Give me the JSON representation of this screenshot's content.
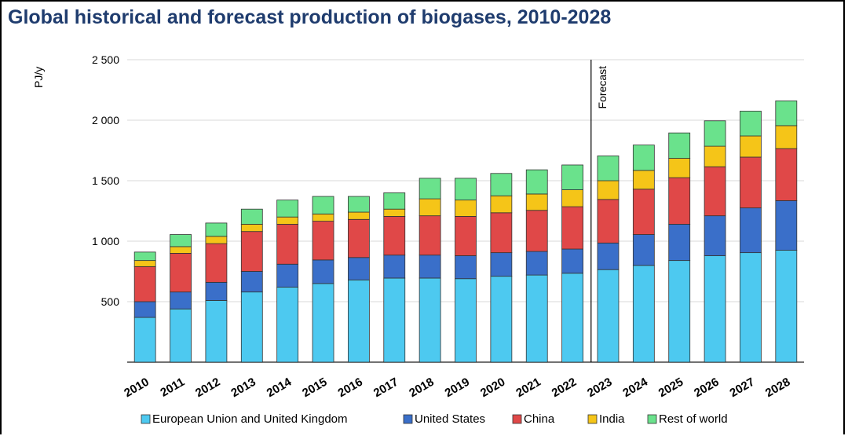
{
  "chart_data": {
    "type": "bar",
    "stacked": true,
    "title": "Global historical and forecast production of biogases, 2010-2028",
    "ylabel": "PJ/y",
    "xlabel": "",
    "ylim": [
      0,
      2500
    ],
    "yticks": [
      500,
      1000,
      1500,
      2000,
      2500
    ],
    "ytick_labels": [
      "500",
      "1 000",
      "1 500",
      "2 000",
      "2 500"
    ],
    "grid": true,
    "legend_position": "bottom",
    "forecast_label": "Forecast",
    "forecast_after": "2022",
    "categories": [
      "2010",
      "2011",
      "2012",
      "2013",
      "2014",
      "2015",
      "2016",
      "2017",
      "2018",
      "2019",
      "2020",
      "2021",
      "2022",
      "2023",
      "2024",
      "2025",
      "2026",
      "2027",
      "2028"
    ],
    "series": [
      {
        "name": "European Union and United Kingdom",
        "color": "#4dc9f0",
        "values": [
          370,
          440,
          510,
          580,
          620,
          650,
          680,
          695,
          695,
          690,
          710,
          720,
          735,
          765,
          800,
          840,
          880,
          905,
          925
        ]
      },
      {
        "name": "United States",
        "color": "#3a6fc9",
        "values": [
          130,
          140,
          150,
          170,
          190,
          195,
          185,
          190,
          190,
          190,
          195,
          195,
          200,
          220,
          255,
          300,
          330,
          370,
          410
        ]
      },
      {
        "name": "China",
        "color": "#e04848",
        "values": [
          290,
          320,
          320,
          330,
          330,
          320,
          315,
          320,
          325,
          325,
          330,
          340,
          350,
          360,
          375,
          385,
          405,
          420,
          430
        ]
      },
      {
        "name": "India",
        "color": "#f5c518",
        "values": [
          50,
          55,
          60,
          60,
          60,
          60,
          60,
          60,
          140,
          135,
          140,
          135,
          140,
          155,
          155,
          160,
          170,
          175,
          190
        ]
      },
      {
        "name": "Rest of world",
        "color": "#6ae28c",
        "values": [
          70,
          100,
          110,
          125,
          140,
          145,
          130,
          135,
          170,
          180,
          185,
          200,
          205,
          205,
          210,
          210,
          210,
          205,
          205
        ]
      }
    ]
  }
}
